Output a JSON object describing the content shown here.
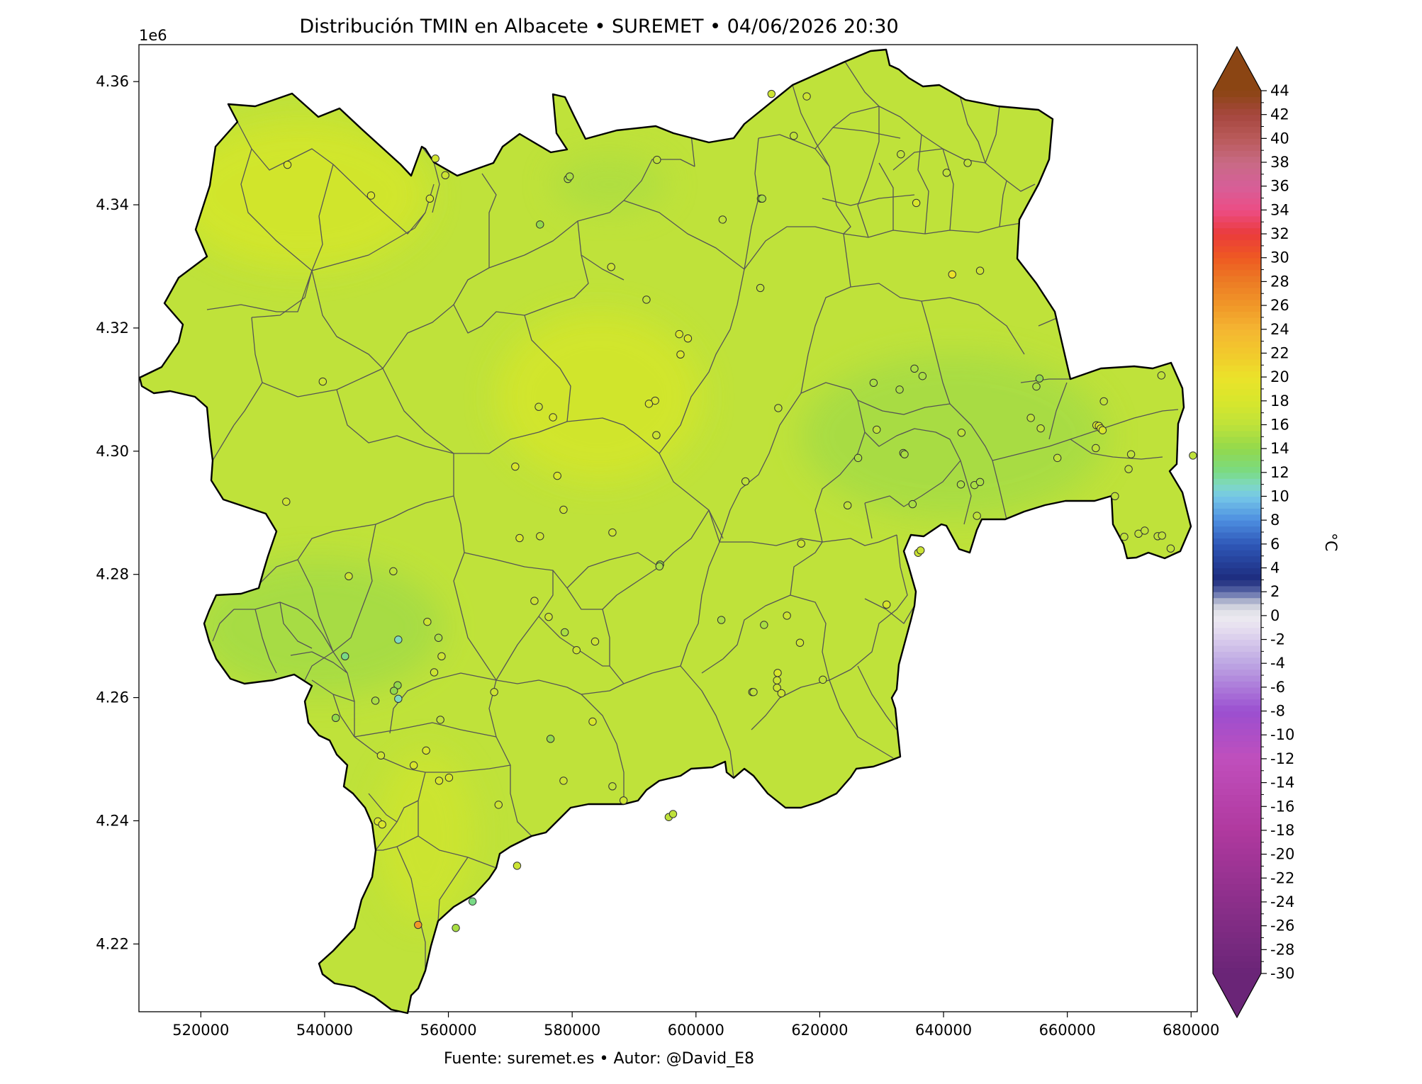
{
  "title": "Distribución TMIN en Albacete • SUREMET • 04/06/2026 20:30",
  "footer": "Fuente: suremet.es   •   Autor: @David_E8",
  "axes": {
    "x_ticks": [
      "520000",
      "540000",
      "560000",
      "580000",
      "600000",
      "620000",
      "640000",
      "660000",
      "680000"
    ],
    "y_ticks": [
      "4.36",
      "4.34",
      "4.32",
      "4.30",
      "4.28",
      "4.26",
      "4.24",
      "4.22"
    ],
    "y_offset_label": "1e6"
  },
  "colorbar": {
    "label": "°C",
    "ticks": [
      "44",
      "42",
      "40",
      "38",
      "36",
      "34",
      "32",
      "30",
      "28",
      "26",
      "24",
      "22",
      "20",
      "18",
      "16",
      "14",
      "12",
      "10",
      "8",
      "6",
      "4",
      "2",
      "0",
      "-2",
      "-4",
      "-6",
      "-8",
      "-10",
      "-12",
      "-14",
      "-16",
      "-18",
      "-20",
      "-22",
      "-24",
      "-26",
      "-28",
      "-30"
    ],
    "colors": {
      "top": "#8b4513",
      "bottom": "#6a2577"
    }
  },
  "map": {
    "base_fill": "#bfe23a",
    "warm_zone_fill": "#d4e62c",
    "cool_zone_fill": "#a6dc44",
    "outline_color": "#000000",
    "municipal_border_color": "#555555"
  },
  "chart_data": {
    "type": "scatter",
    "title": "Distribución TMIN en Albacete • SUREMET • 04/06/2026 20:30",
    "xlabel": "",
    "ylabel": "",
    "xlim": [
      510000,
      681000
    ],
    "ylim": [
      4209000,
      4366000
    ],
    "colorbar_range": [
      -30,
      44
    ],
    "colorbar_label": "°C",
    "stations": [
      {
        "x": 534000,
        "y": 4346500,
        "t": 18
      },
      {
        "x": 547500,
        "y": 4341500,
        "t": 18
      },
      {
        "x": 557000,
        "y": 4341000,
        "t": 17.5
      },
      {
        "x": 557900,
        "y": 4347500,
        "t": 17.5
      },
      {
        "x": 559500,
        "y": 4344800,
        "t": 17
      },
      {
        "x": 574800,
        "y": 4336800,
        "t": 14
      },
      {
        "x": 579300,
        "y": 4344200,
        "t": 15
      },
      {
        "x": 579600,
        "y": 4344600,
        "t": 15
      },
      {
        "x": 593700,
        "y": 4347300,
        "t": 16
      },
      {
        "x": 604300,
        "y": 4337600,
        "t": 16
      },
      {
        "x": 610500,
        "y": 4341000,
        "t": 15
      },
      {
        "x": 610700,
        "y": 4341000,
        "t": 15
      },
      {
        "x": 612200,
        "y": 4358000,
        "t": 17
      },
      {
        "x": 617900,
        "y": 4357600,
        "t": 17
      },
      {
        "x": 615800,
        "y": 4351200,
        "t": 16
      },
      {
        "x": 633100,
        "y": 4348200,
        "t": 16
      },
      {
        "x": 635600,
        "y": 4340300,
        "t": 18
      },
      {
        "x": 640500,
        "y": 4345200,
        "t": 16
      },
      {
        "x": 643900,
        "y": 4346800,
        "t": 16
      },
      {
        "x": 641400,
        "y": 4328700,
        "t": 20
      },
      {
        "x": 645900,
        "y": 4329300,
        "t": 17
      },
      {
        "x": 586300,
        "y": 4329900,
        "t": 17
      },
      {
        "x": 592000,
        "y": 4324600,
        "t": 16
      },
      {
        "x": 610400,
        "y": 4326500,
        "t": 16
      },
      {
        "x": 539700,
        "y": 4311300,
        "t": 17
      },
      {
        "x": 597300,
        "y": 4319000,
        "t": 18
      },
      {
        "x": 598700,
        "y": 4318300,
        "t": 18
      },
      {
        "x": 597500,
        "y": 4315700,
        "t": 18
      },
      {
        "x": 593400,
        "y": 4308200,
        "t": 18
      },
      {
        "x": 592400,
        "y": 4307700,
        "t": 18
      },
      {
        "x": 574600,
        "y": 4307200,
        "t": 17
      },
      {
        "x": 576900,
        "y": 4305500,
        "t": 18
      },
      {
        "x": 613300,
        "y": 4307000,
        "t": 16
      },
      {
        "x": 593600,
        "y": 4302600,
        "t": 17
      },
      {
        "x": 570800,
        "y": 4297500,
        "t": 18
      },
      {
        "x": 577600,
        "y": 4296000,
        "t": 18
      },
      {
        "x": 578600,
        "y": 4290500,
        "t": 17
      },
      {
        "x": 533800,
        "y": 4291800,
        "t": 17
      },
      {
        "x": 571500,
        "y": 4285900,
        "t": 18
      },
      {
        "x": 574800,
        "y": 4286200,
        "t": 17
      },
      {
        "x": 586500,
        "y": 4286800,
        "t": 17
      },
      {
        "x": 608000,
        "y": 4295100,
        "t": 16
      },
      {
        "x": 617000,
        "y": 4285000,
        "t": 17
      },
      {
        "x": 594200,
        "y": 4281600,
        "t": 14
      },
      {
        "x": 594100,
        "y": 4281300,
        "t": 15
      },
      {
        "x": 543900,
        "y": 4279700,
        "t": 17
      },
      {
        "x": 551100,
        "y": 4280500,
        "t": 16
      },
      {
        "x": 573900,
        "y": 4275700,
        "t": 17
      },
      {
        "x": 576200,
        "y": 4273100,
        "t": 17
      },
      {
        "x": 556600,
        "y": 4272300,
        "t": 17
      },
      {
        "x": 578800,
        "y": 4270600,
        "t": 15
      },
      {
        "x": 583700,
        "y": 4269100,
        "t": 17
      },
      {
        "x": 580700,
        "y": 4267700,
        "t": 17
      },
      {
        "x": 551900,
        "y": 4269400,
        "t": 11
      },
      {
        "x": 558400,
        "y": 4269700,
        "t": 15
      },
      {
        "x": 558900,
        "y": 4266700,
        "t": 17
      },
      {
        "x": 543300,
        "y": 4266700,
        "t": 12
      },
      {
        "x": 604100,
        "y": 4272600,
        "t": 15
      },
      {
        "x": 611000,
        "y": 4271800,
        "t": 15
      },
      {
        "x": 614700,
        "y": 4273300,
        "t": 17
      },
      {
        "x": 616800,
        "y": 4268900,
        "t": 17
      },
      {
        "x": 613200,
        "y": 4264000,
        "t": 18
      },
      {
        "x": 613100,
        "y": 4262800,
        "t": 17
      },
      {
        "x": 613100,
        "y": 4261600,
        "t": 17
      },
      {
        "x": 613800,
        "y": 4260700,
        "t": 17
      },
      {
        "x": 609100,
        "y": 4260900,
        "t": 16
      },
      {
        "x": 609300,
        "y": 4260900,
        "t": 16
      },
      {
        "x": 620500,
        "y": 4262900,
        "t": 16
      },
      {
        "x": 557700,
        "y": 4264100,
        "t": 17
      },
      {
        "x": 551800,
        "y": 4262000,
        "t": 14
      },
      {
        "x": 551200,
        "y": 4261100,
        "t": 14
      },
      {
        "x": 551900,
        "y": 4259800,
        "t": 11
      },
      {
        "x": 548200,
        "y": 4259500,
        "t": 15
      },
      {
        "x": 567400,
        "y": 4260900,
        "t": 17
      },
      {
        "x": 541800,
        "y": 4256700,
        "t": 14
      },
      {
        "x": 558700,
        "y": 4256400,
        "t": 16
      },
      {
        "x": 583300,
        "y": 4256100,
        "t": 18
      },
      {
        "x": 576500,
        "y": 4253300,
        "t": 14
      },
      {
        "x": 549100,
        "y": 4250600,
        "t": 17
      },
      {
        "x": 556400,
        "y": 4251400,
        "t": 18
      },
      {
        "x": 554400,
        "y": 4249000,
        "t": 18
      },
      {
        "x": 558500,
        "y": 4246500,
        "t": 18
      },
      {
        "x": 560100,
        "y": 4247000,
        "t": 18
      },
      {
        "x": 578600,
        "y": 4246500,
        "t": 17
      },
      {
        "x": 586500,
        "y": 4245600,
        "t": 16
      },
      {
        "x": 588300,
        "y": 4243300,
        "t": 17
      },
      {
        "x": 568100,
        "y": 4242600,
        "t": 17
      },
      {
        "x": 548600,
        "y": 4239900,
        "t": 18
      },
      {
        "x": 549300,
        "y": 4239400,
        "t": 18
      },
      {
        "x": 595600,
        "y": 4240600,
        "t": 16
      },
      {
        "x": 596300,
        "y": 4241100,
        "t": 16
      },
      {
        "x": 571100,
        "y": 4232700,
        "t": 17
      },
      {
        "x": 563900,
        "y": 4226900,
        "t": 12
      },
      {
        "x": 555100,
        "y": 4223100,
        "t": 26
      },
      {
        "x": 561200,
        "y": 4222600,
        "t": 15
      },
      {
        "x": 628700,
        "y": 4311100,
        "t": 15
      },
      {
        "x": 632900,
        "y": 4310000,
        "t": 15
      },
      {
        "x": 635300,
        "y": 4313400,
        "t": 15
      },
      {
        "x": 636600,
        "y": 4312200,
        "t": 15
      },
      {
        "x": 629200,
        "y": 4303500,
        "t": 16
      },
      {
        "x": 626200,
        "y": 4298900,
        "t": 15
      },
      {
        "x": 633500,
        "y": 4299700,
        "t": 15
      },
      {
        "x": 633700,
        "y": 4299500,
        "t": 15
      },
      {
        "x": 624500,
        "y": 4291200,
        "t": 16
      },
      {
        "x": 635000,
        "y": 4291400,
        "t": 15
      },
      {
        "x": 635900,
        "y": 4283500,
        "t": 17
      },
      {
        "x": 636300,
        "y": 4283900,
        "t": 17
      },
      {
        "x": 630800,
        "y": 4275100,
        "t": 18
      },
      {
        "x": 642900,
        "y": 4303000,
        "t": 16
      },
      {
        "x": 642800,
        "y": 4294600,
        "t": 15
      },
      {
        "x": 645000,
        "y": 4294500,
        "t": 15
      },
      {
        "x": 645900,
        "y": 4295000,
        "t": 15
      },
      {
        "x": 645400,
        "y": 4289500,
        "t": 16
      },
      {
        "x": 654100,
        "y": 4305400,
        "t": 16
      },
      {
        "x": 655700,
        "y": 4303700,
        "t": 16
      },
      {
        "x": 655000,
        "y": 4310500,
        "t": 15
      },
      {
        "x": 655500,
        "y": 4311800,
        "t": 14
      },
      {
        "x": 658400,
        "y": 4298900,
        "t": 16
      },
      {
        "x": 664700,
        "y": 4304200,
        "t": 18
      },
      {
        "x": 665100,
        "y": 4304100,
        "t": 18
      },
      {
        "x": 665400,
        "y": 4303700,
        "t": 18
      },
      {
        "x": 665700,
        "y": 4303400,
        "t": 18
      },
      {
        "x": 665900,
        "y": 4308100,
        "t": 16
      },
      {
        "x": 664600,
        "y": 4300500,
        "t": 16
      },
      {
        "x": 670300,
        "y": 4299500,
        "t": 16
      },
      {
        "x": 669900,
        "y": 4297100,
        "t": 16
      },
      {
        "x": 667700,
        "y": 4292700,
        "t": 16
      },
      {
        "x": 680300,
        "y": 4299300,
        "t": 16
      },
      {
        "x": 669200,
        "y": 4286100,
        "t": 16
      },
      {
        "x": 671500,
        "y": 4286600,
        "t": 16
      },
      {
        "x": 672500,
        "y": 4287100,
        "t": 16
      },
      {
        "x": 674600,
        "y": 4286200,
        "t": 16
      },
      {
        "x": 675300,
        "y": 4286300,
        "t": 16
      },
      {
        "x": 676700,
        "y": 4284200,
        "t": 16
      },
      {
        "x": 675200,
        "y": 4312300,
        "t": 16
      }
    ]
  }
}
